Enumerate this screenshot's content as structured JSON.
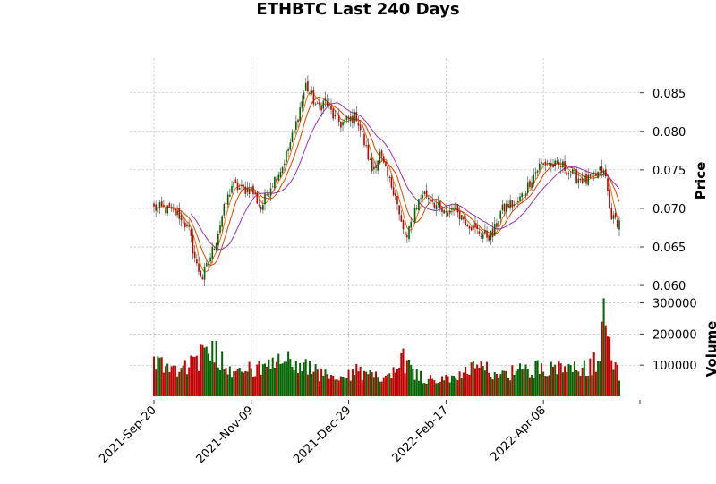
{
  "chart_data": {
    "type": "candlestick",
    "title": "ETHBTC Last 240 Days",
    "price_ylabel": "Price",
    "volume_ylabel": "Volume",
    "price_ylim": [
      0.0585,
      0.0895
    ],
    "volume_ylim": [
      0,
      310000
    ],
    "price_yticks": [
      0.06,
      0.065,
      0.07,
      0.075,
      0.08,
      0.085
    ],
    "price_ytick_labels": [
      "0.060",
      "0.065",
      "0.070",
      "0.075",
      "0.080",
      "0.085"
    ],
    "volume_yticks": [
      100000,
      200000,
      300000
    ],
    "volume_ytick_labels": [
      "100000",
      "200000",
      "300000"
    ],
    "x_ticks": [
      {
        "day": 0,
        "label": "2021-Sep-20"
      },
      {
        "day": 50,
        "label": "2021-Nov-09"
      },
      {
        "day": 100,
        "label": "2021-Dec-29"
      },
      {
        "day": 150,
        "label": "2022-Feb-17"
      },
      {
        "day": 200,
        "label": "2022-Apr-08"
      }
    ],
    "n_days": 240,
    "grid": true,
    "colors": {
      "up": "#006400",
      "down": "#c00000",
      "wick": "#555555",
      "ma_short": "#ff6600",
      "ma_mid": "#dd4400",
      "ma_long": "#9933aa"
    },
    "moving_averages": [
      {
        "period": 5,
        "color_key": "ma_short"
      },
      {
        "period": 10,
        "color_key": "ma_mid"
      },
      {
        "period": 20,
        "color_key": "ma_long"
      }
    ],
    "close_anchors": [
      [
        0,
        0.07
      ],
      [
        5,
        0.07
      ],
      [
        10,
        0.0695
      ],
      [
        14,
        0.069
      ],
      [
        18,
        0.067
      ],
      [
        22,
        0.0625
      ],
      [
        25,
        0.061
      ],
      [
        28,
        0.063
      ],
      [
        32,
        0.066
      ],
      [
        35,
        0.069
      ],
      [
        40,
        0.073
      ],
      [
        45,
        0.0725
      ],
      [
        50,
        0.0725
      ],
      [
        55,
        0.07
      ],
      [
        60,
        0.073
      ],
      [
        66,
        0.0755
      ],
      [
        72,
        0.08
      ],
      [
        76,
        0.084
      ],
      [
        78,
        0.086
      ],
      [
        80,
        0.085
      ],
      [
        84,
        0.083
      ],
      [
        88,
        0.084
      ],
      [
        92,
        0.082
      ],
      [
        96,
        0.081
      ],
      [
        100,
        0.0815
      ],
      [
        104,
        0.082
      ],
      [
        108,
        0.0785
      ],
      [
        112,
        0.075
      ],
      [
        116,
        0.077
      ],
      [
        120,
        0.074
      ],
      [
        124,
        0.072
      ],
      [
        126,
        0.069
      ],
      [
        128,
        0.067
      ],
      [
        130,
        0.066
      ],
      [
        134,
        0.07
      ],
      [
        138,
        0.072
      ],
      [
        142,
        0.0715
      ],
      [
        146,
        0.07
      ],
      [
        150,
        0.069
      ],
      [
        154,
        0.0705
      ],
      [
        158,
        0.069
      ],
      [
        162,
        0.068
      ],
      [
        166,
        0.067
      ],
      [
        170,
        0.0665
      ],
      [
        174,
        0.0665
      ],
      [
        178,
        0.0695
      ],
      [
        182,
        0.0705
      ],
      [
        186,
        0.0705
      ],
      [
        190,
        0.072
      ],
      [
        194,
        0.074
      ],
      [
        198,
        0.0755
      ],
      [
        202,
        0.076
      ],
      [
        206,
        0.0755
      ],
      [
        210,
        0.0755
      ],
      [
        214,
        0.0745
      ],
      [
        218,
        0.074
      ],
      [
        222,
        0.0735
      ],
      [
        226,
        0.074
      ],
      [
        230,
        0.075
      ],
      [
        232,
        0.074
      ],
      [
        234,
        0.07
      ],
      [
        236,
        0.0685
      ],
      [
        239,
        0.0682
      ]
    ],
    "volume_anchors": [
      [
        0,
        110000
      ],
      [
        10,
        90000
      ],
      [
        20,
        110000
      ],
      [
        26,
        130000
      ],
      [
        30,
        160000
      ],
      [
        36,
        110000
      ],
      [
        40,
        90000
      ],
      [
        50,
        85000
      ],
      [
        60,
        90000
      ],
      [
        66,
        120000
      ],
      [
        70,
        110000
      ],
      [
        76,
        100000
      ],
      [
        86,
        70000
      ],
      [
        96,
        50000
      ],
      [
        104,
        80000
      ],
      [
        112,
        60000
      ],
      [
        122,
        70000
      ],
      [
        126,
        140000
      ],
      [
        130,
        100000
      ],
      [
        138,
        60000
      ],
      [
        146,
        50000
      ],
      [
        152,
        55000
      ],
      [
        160,
        85000
      ],
      [
        170,
        85000
      ],
      [
        178,
        70000
      ],
      [
        186,
        80000
      ],
      [
        194,
        85000
      ],
      [
        202,
        100000
      ],
      [
        210,
        80000
      ],
      [
        218,
        85000
      ],
      [
        224,
        95000
      ],
      [
        228,
        120000
      ],
      [
        230,
        220000
      ],
      [
        232,
        260000
      ],
      [
        234,
        190000
      ],
      [
        236,
        120000
      ],
      [
        239,
        60000
      ]
    ]
  }
}
